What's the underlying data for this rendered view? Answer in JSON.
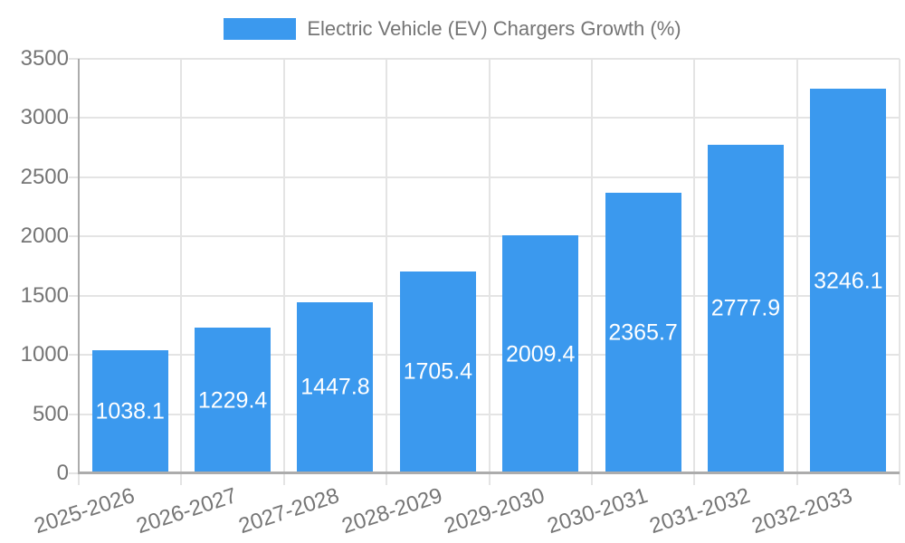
{
  "legend": {
    "label": "Electric Vehicle (EV) Chargers Growth (%)"
  },
  "colors": {
    "bar": "#3B99EE",
    "gridline": "#E4E4E4",
    "axis_border": "#ACACAC",
    "tick_text": "#757575",
    "value_label_text": "#FFFFFF",
    "background": "#FFFFFF"
  },
  "chart_data": {
    "type": "bar",
    "title": "Electric Vehicle (EV) Chargers Growth (%)",
    "categories": [
      "2025-2026",
      "2026-2027",
      "2027-2028",
      "2028-2029",
      "2029-2030",
      "2030-2031",
      "2031-2032",
      "2032-2033"
    ],
    "values": [
      1038.1,
      1229.4,
      1447.8,
      1705.4,
      2009.4,
      2365.7,
      2777.9,
      3246.1
    ],
    "value_labels": [
      "1038.1",
      "1229.4",
      "1447.8",
      "1705.4",
      "2009.4",
      "2365.7",
      "2777.9",
      "3246.1"
    ],
    "value_label_position": "inside-center",
    "xlabel": "",
    "ylabel": "",
    "ylim": [
      0,
      3500
    ],
    "yticks": [
      0,
      500,
      1000,
      1500,
      2000,
      2500,
      3000,
      3500
    ],
    "grid": true,
    "legend_position": "top-center",
    "x_tick_rotation_deg": -18
  }
}
